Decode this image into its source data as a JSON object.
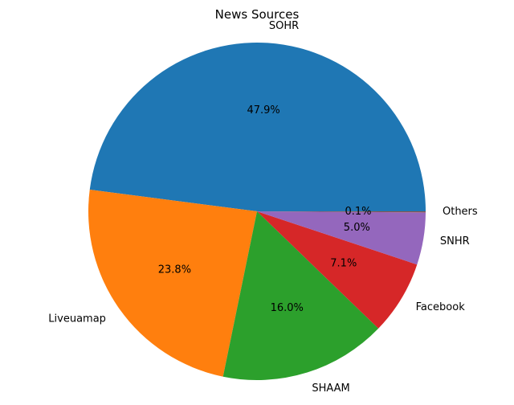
{
  "chart_data": {
    "type": "pie",
    "title": "News Sources",
    "slices": [
      {
        "label": "SOHR",
        "value": 47.9,
        "pct_label": "47.9%",
        "color": "#1f77b4"
      },
      {
        "label": "Liveuamap",
        "value": 23.8,
        "pct_label": "23.8%",
        "color": "#ff7f0e"
      },
      {
        "label": "SHAAM",
        "value": 16.0,
        "pct_label": "16.0%",
        "color": "#2ca02c"
      },
      {
        "label": "Facebook",
        "value": 7.1,
        "pct_label": "7.1%",
        "color": "#d62728"
      },
      {
        "label": "SNHR",
        "value": 5.0,
        "pct_label": "5.0%",
        "color": "#9467bd"
      },
      {
        "label": "Others",
        "value": 0.1,
        "pct_label": "0.1%",
        "color": "#8c564b"
      }
    ],
    "start_angle_deg": 0,
    "direction": "counterclockwise",
    "legend": "none"
  }
}
